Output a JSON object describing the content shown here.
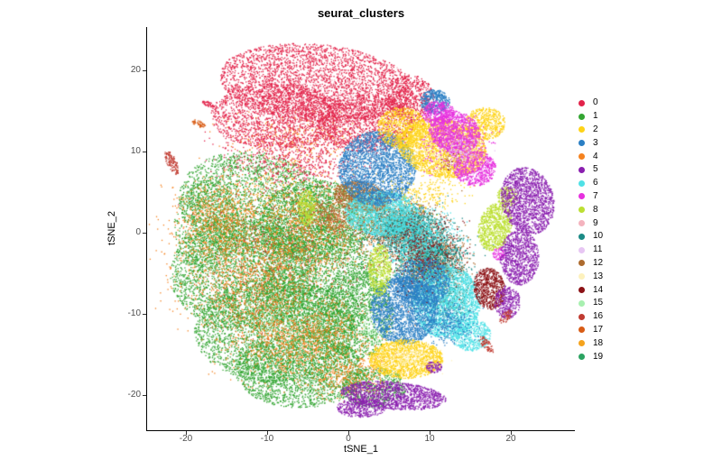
{
  "chart_data": {
    "type": "scatter",
    "title": "seurat_clusters",
    "xlabel": "tSNE_1",
    "ylabel": "tSNE_2",
    "xlim": [
      -24.8,
      27.9
    ],
    "ylim": [
      -24.3,
      25.3
    ],
    "xticks": [
      -20,
      -10,
      0,
      10,
      20
    ],
    "yticks": [
      -20,
      -10,
      0,
      10,
      20
    ],
    "grid": false,
    "legend_position": "right",
    "legend": [
      {
        "label": "0",
        "color": "#E2234A"
      },
      {
        "label": "1",
        "color": "#33A532"
      },
      {
        "label": "2",
        "color": "#FED318"
      },
      {
        "label": "3",
        "color": "#2B7FC4"
      },
      {
        "label": "4",
        "color": "#F5821F"
      },
      {
        "label": "5",
        "color": "#8A1FAF"
      },
      {
        "label": "6",
        "color": "#4FE1E6"
      },
      {
        "label": "7",
        "color": "#E631DE"
      },
      {
        "label": "8",
        "color": "#BCDF33"
      },
      {
        "label": "9",
        "color": "#F4B3BE"
      },
      {
        "label": "10",
        "color": "#1B8A85"
      },
      {
        "label": "11",
        "color": "#E7C6F3"
      },
      {
        "label": "12",
        "color": "#AD6B2E"
      },
      {
        "label": "13",
        "color": "#FDF1BD"
      },
      {
        "label": "14",
        "color": "#8C1216"
      },
      {
        "label": "15",
        "color": "#A8F0B0"
      },
      {
        "label": "16",
        "color": "#C03B31"
      },
      {
        "label": "17",
        "color": "#D85C15"
      },
      {
        "label": "18",
        "color": "#F5A31D"
      },
      {
        "label": "19",
        "color": "#2BA361"
      }
    ],
    "blob_format": [
      "cx",
      "cy",
      "rx",
      "ry",
      "rot_deg",
      "n",
      "dist(u=uniform,g=gaussian)"
    ],
    "draw_order": [
      "1",
      "4",
      "15",
      "17",
      "18",
      "9",
      "0",
      "12",
      "10",
      "19",
      "6",
      "3",
      "14",
      "2",
      "13",
      "7",
      "11",
      "8",
      "5",
      "16"
    ],
    "clusters": [
      {
        "id": "1",
        "color": "#33A532",
        "blobs": [
          [
            -11.5,
            3.5,
            9.5,
            6.5,
            -10,
            2600,
            "u"
          ],
          [
            -13,
            -5,
            9,
            7,
            0,
            3000,
            "u"
          ],
          [
            -9,
            -12,
            10,
            6.5,
            0,
            3000,
            "u"
          ],
          [
            -6,
            -17,
            8,
            4.5,
            0,
            2000,
            "u"
          ],
          [
            -3.5,
            -6,
            7,
            7,
            0,
            2400,
            "u"
          ],
          [
            -4,
            1.5,
            7,
            5,
            0,
            1800,
            "u"
          ],
          [
            1,
            -10,
            4.5,
            5.5,
            0,
            1100,
            "u"
          ],
          [
            -17.5,
            1,
            4,
            5.5,
            0,
            800,
            "u"
          ],
          [
            3,
            -19,
            4,
            2.5,
            0,
            600,
            "u"
          ]
        ]
      },
      {
        "id": "4",
        "color": "#F5821F",
        "blobs": [
          [
            -12,
            -4,
            9.5,
            8,
            0,
            1300,
            "g"
          ],
          [
            -6,
            -13,
            9,
            5,
            0,
            1100,
            "g"
          ],
          [
            -16,
            2,
            5,
            5,
            0,
            600,
            "g"
          ],
          [
            -4,
            0,
            7,
            5,
            0,
            650,
            "g"
          ],
          [
            0,
            -17.5,
            5,
            3,
            0,
            400,
            "g"
          ],
          [
            -6,
            12,
            8,
            3,
            0,
            300,
            "g"
          ]
        ]
      },
      {
        "id": "15",
        "color": "#A8F0B0",
        "blobs": [
          [
            -8,
            -10,
            6,
            4,
            0,
            200,
            "g"
          ],
          [
            3,
            -12,
            2.5,
            2.5,
            0,
            90,
            "g"
          ]
        ]
      },
      {
        "id": "17",
        "color": "#D85C15",
        "blobs": [
          [
            -18.5,
            13.5,
            0.9,
            0.35,
            -25,
            50,
            "u"
          ],
          [
            -10,
            -8,
            8,
            6,
            0,
            250,
            "g"
          ]
        ]
      },
      {
        "id": "18",
        "color": "#F5A31D",
        "blobs": [
          [
            -8,
            5,
            8,
            5,
            0,
            250,
            "g"
          ]
        ]
      },
      {
        "id": "9",
        "color": "#F4B3BE",
        "blobs": [
          [
            -3,
            17,
            8,
            3.5,
            0,
            300,
            "g"
          ]
        ]
      },
      {
        "id": "0",
        "color": "#E2234A",
        "blobs": [
          [
            -4,
            18.5,
            12,
            4.8,
            -5,
            3200,
            "u"
          ],
          [
            -9,
            14.5,
            8,
            4,
            0,
            1600,
            "u"
          ],
          [
            2,
            13.5,
            6,
            3.5,
            0,
            1200,
            "u"
          ],
          [
            -6,
            9.5,
            9,
            3.5,
            0,
            700,
            "g"
          ],
          [
            7.5,
            16.5,
            3,
            3,
            0,
            600,
            "u"
          ],
          [
            -17.3,
            15.9,
            0.8,
            0.3,
            -20,
            50,
            "u"
          ]
        ]
      },
      {
        "id": "12",
        "color": "#AD6B2E",
        "blobs": [
          [
            1.5,
            4.5,
            3.4,
            1.9,
            -10,
            950,
            "u"
          ],
          [
            6,
            1,
            5,
            3,
            0,
            1200,
            "g"
          ],
          [
            10,
            -3.5,
            4,
            3.5,
            0,
            1050,
            "g"
          ],
          [
            -2,
            2,
            3,
            2,
            0,
            300,
            "g"
          ]
        ]
      },
      {
        "id": "10",
        "color": "#1B8A85",
        "blobs": [
          [
            7,
            0.5,
            4.5,
            3,
            0,
            1300,
            "g"
          ],
          [
            10.5,
            -3,
            4,
            3.5,
            0,
            1050,
            "g"
          ],
          [
            12,
            -8,
            3,
            3,
            0,
            350,
            "g"
          ]
        ]
      },
      {
        "id": "19",
        "color": "#2BA361",
        "blobs": [
          [
            8,
            -5,
            4,
            3,
            0,
            220,
            "g"
          ]
        ]
      },
      {
        "id": "6",
        "color": "#4FE1E6",
        "blobs": [
          [
            4,
            2.5,
            4.5,
            2.8,
            0,
            1500,
            "u"
          ],
          [
            12,
            -8.5,
            4.2,
            4.5,
            0,
            2200,
            "u"
          ],
          [
            15,
            -12.5,
            2.5,
            2,
            0,
            500,
            "u"
          ],
          [
            8.5,
            -1,
            4,
            3.5,
            0,
            900,
            "g"
          ]
        ]
      },
      {
        "id": "3",
        "color": "#2B7FC4",
        "blobs": [
          [
            3.5,
            8,
            4.8,
            4.6,
            20,
            2400,
            "u"
          ],
          [
            6.8,
            -9.5,
            4.2,
            4.2,
            0,
            2000,
            "u"
          ],
          [
            9,
            -6,
            3.5,
            3,
            0,
            1000,
            "u"
          ],
          [
            10.6,
            16.2,
            1.8,
            1.5,
            0,
            450,
            "u"
          ],
          [
            12,
            -11,
            3,
            2.5,
            0,
            300,
            "g"
          ]
        ]
      },
      {
        "id": "14",
        "color": "#8C1216",
        "blobs": [
          [
            17.3,
            -6.8,
            1.9,
            2.6,
            10,
            650,
            "u"
          ],
          [
            9,
            -2,
            5,
            4,
            0,
            400,
            "g"
          ],
          [
            12.5,
            9,
            1.5,
            1.2,
            30,
            90,
            "u"
          ]
        ]
      },
      {
        "id": "2",
        "color": "#FED318",
        "blobs": [
          [
            11.5,
            10.5,
            5.5,
            3.6,
            -10,
            2400,
            "u"
          ],
          [
            6.5,
            13,
            3,
            2.5,
            0,
            700,
            "u"
          ],
          [
            7,
            -15.5,
            4.6,
            2.4,
            0,
            1500,
            "u"
          ],
          [
            16.8,
            13.5,
            2.5,
            2,
            0,
            500,
            "u"
          ],
          [
            10,
            5,
            4,
            2,
            0,
            200,
            "g"
          ]
        ]
      },
      {
        "id": "13",
        "color": "#FDF1BD",
        "blobs": [
          [
            7,
            -15.5,
            3.5,
            1.8,
            0,
            180,
            "g"
          ],
          [
            11.5,
            10.5,
            3,
            2,
            0,
            120,
            "g"
          ]
        ]
      },
      {
        "id": "7",
        "color": "#E631DE",
        "blobs": [
          [
            13,
            12.5,
            3.2,
            2.6,
            -20,
            1100,
            "u"
          ],
          [
            15.5,
            8,
            2.6,
            2.2,
            0,
            700,
            "u"
          ],
          [
            11,
            14.8,
            2,
            1.5,
            0,
            350,
            "u"
          ],
          [
            13,
            11,
            4,
            3,
            0,
            300,
            "g"
          ],
          [
            18.5,
            -2.5,
            0.8,
            0.8,
            0,
            80,
            "u"
          ]
        ]
      },
      {
        "id": "11",
        "color": "#E7C6F3",
        "blobs": [
          [
            14,
            10,
            2.5,
            2,
            0,
            150,
            "g"
          ],
          [
            21,
            2,
            1.5,
            2,
            0,
            90,
            "g"
          ]
        ]
      },
      {
        "id": "8",
        "color": "#BCDF33",
        "blobs": [
          [
            18,
            0.8,
            2,
            3,
            -15,
            800,
            "u"
          ],
          [
            3.8,
            -4.5,
            1.4,
            3.2,
            0,
            500,
            "u"
          ],
          [
            -5.2,
            3.2,
            1.1,
            2.2,
            0,
            280,
            "u"
          ],
          [
            19.5,
            4.5,
            1.3,
            1.2,
            0,
            180,
            "u"
          ]
        ]
      },
      {
        "id": "5",
        "color": "#8A1FAF",
        "blobs": [
          [
            22,
            4,
            3.2,
            4.2,
            15,
            1500,
            "u"
          ],
          [
            21,
            -3,
            2.4,
            3.4,
            0,
            900,
            "u"
          ],
          [
            19.5,
            -8.5,
            1.6,
            2,
            0,
            350,
            "u"
          ],
          [
            5.5,
            -20,
            6.5,
            1.7,
            -5,
            1300,
            "u"
          ],
          [
            1.5,
            -21.5,
            3,
            1.2,
            0,
            400,
            "u"
          ],
          [
            10.5,
            -16.5,
            1,
            0.7,
            0,
            90,
            "u"
          ]
        ]
      },
      {
        "id": "16",
        "color": "#C03B31",
        "blobs": [
          [
            -21.8,
            8.7,
            0.6,
            1.6,
            25,
            120,
            "u"
          ],
          [
            16.9,
            -13.7,
            0.5,
            1.3,
            40,
            80,
            "u"
          ],
          [
            19.3,
            -10.3,
            0.5,
            1,
            -40,
            60,
            "u"
          ],
          [
            -7,
            0,
            10,
            8,
            0,
            350,
            "g"
          ]
        ]
      }
    ]
  }
}
